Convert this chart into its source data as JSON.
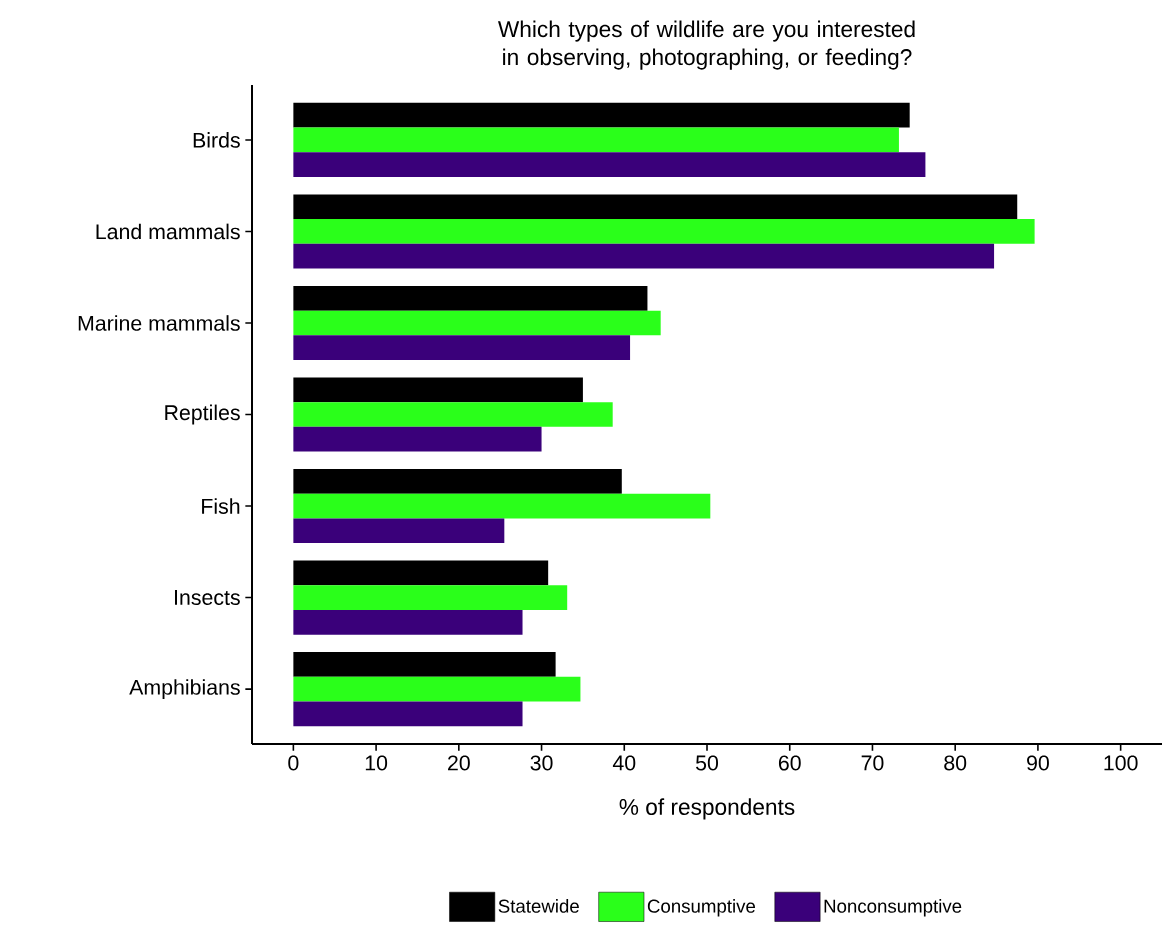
{
  "chart_data": {
    "type": "bar",
    "orientation": "horizontal",
    "title": "Which types of wildlife are you interested in observing, photographing, or feeding?",
    "xlabel": "% of respondents",
    "categories": [
      "Birds",
      "Land mammals",
      "Marine mammals",
      "Reptiles",
      "Fish",
      "Insects",
      "Amphibians"
    ],
    "series": [
      {
        "name": "Statewide",
        "color": "#000000",
        "values": [
          74.5,
          87.5,
          42.8,
          35.0,
          39.7,
          30.8,
          31.7
        ]
      },
      {
        "name": "Consumptive",
        "color": "#2aff1a",
        "values": [
          73.2,
          89.6,
          44.4,
          38.6,
          50.4,
          33.1,
          34.7
        ]
      },
      {
        "name": "Nonconsumptive",
        "color": "#3a007a",
        "values": [
          76.4,
          84.7,
          40.7,
          30.0,
          25.5,
          27.7,
          27.7
        ]
      }
    ],
    "xlim": [
      -5,
      105
    ],
    "xticks": [
      0,
      10,
      20,
      30,
      40,
      50,
      60,
      70,
      80,
      90,
      100
    ],
    "legend": "bottom",
    "grid": false
  }
}
